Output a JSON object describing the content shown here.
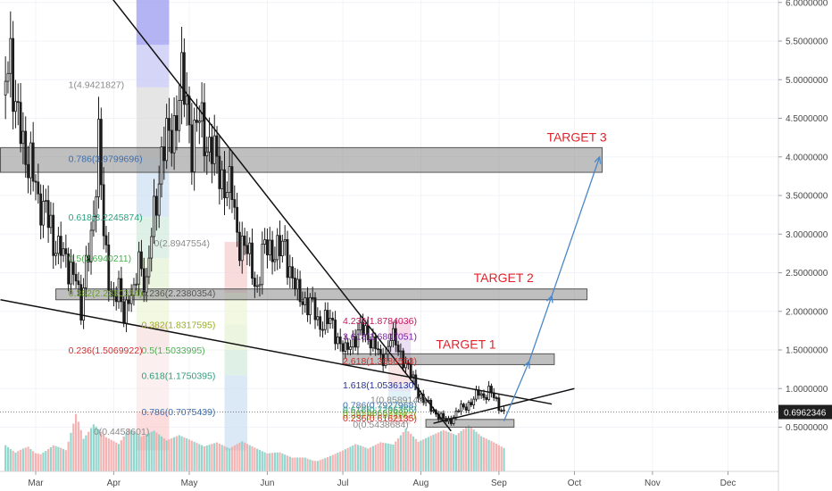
{
  "chart_data": {
    "type": "candlestick",
    "title": "",
    "ylim": [
      0.2,
      6.3
    ],
    "y_ticks": [
      "6.0000000",
      "5.5000000",
      "5.0000000",
      "4.5000000",
      "4.0000000",
      "3.5000000",
      "3.0000000",
      "2.5000000",
      "2.0000000",
      "1.5000000",
      "1.0000000",
      "0.5000000"
    ],
    "y_tick_values": [
      6.0,
      5.5,
      5.0,
      4.5,
      4.0,
      3.5,
      3.0,
      2.5,
      2.0,
      1.5,
      1.0,
      0.5
    ],
    "x_ticks": [
      "Mar",
      "Apr",
      "May",
      "Jun",
      "Jul",
      "Aug",
      "Sep",
      "Oct",
      "Nov",
      "Dec"
    ],
    "x_tick_days": [
      0,
      31,
      61,
      92,
      122,
      153,
      184,
      214,
      245,
      275
    ],
    "last_price": "0.6962346",
    "price_path": [
      [
        -13,
        4.8
      ],
      [
        -10,
        5.45
      ],
      [
        -8,
        4.6
      ],
      [
        -5,
        4.1
      ],
      [
        -2,
        4.0
      ],
      [
        1,
        3.3
      ],
      [
        4,
        3.5
      ],
      [
        7,
        2.7
      ],
      [
        10,
        3.0
      ],
      [
        13,
        2.4
      ],
      [
        16,
        2.6
      ],
      [
        18,
        1.95
      ],
      [
        21,
        2.8
      ],
      [
        23,
        3.3
      ],
      [
        25,
        4.15
      ],
      [
        27,
        3.0
      ],
      [
        29,
        2.5
      ],
      [
        31,
        2.1
      ],
      [
        33,
        2.25
      ],
      [
        35,
        2.0
      ],
      [
        37,
        2.2
      ],
      [
        39,
        2.15
      ],
      [
        41,
        2.75
      ],
      [
        44,
        2.3
      ],
      [
        47,
        3.3
      ],
      [
        50,
        4.0
      ],
      [
        53,
        4.25
      ],
      [
        55,
        4.45
      ],
      [
        58,
        4.9
      ],
      [
        60,
        4.7
      ],
      [
        62,
        4.2
      ],
      [
        65,
        4.45
      ],
      [
        67,
        4.3
      ],
      [
        70,
        4.1
      ],
      [
        72,
        3.85
      ],
      [
        75,
        3.7
      ],
      [
        78,
        3.5
      ],
      [
        80,
        3.0
      ],
      [
        82,
        2.9
      ],
      [
        84,
        2.75
      ],
      [
        86,
        2.55
      ],
      [
        88,
        2.3
      ],
      [
        90,
        2.7
      ],
      [
        92,
        2.85
      ],
      [
        95,
        2.8
      ],
      [
        97,
        2.75
      ],
      [
        99,
        2.85
      ],
      [
        101,
        2.55
      ],
      [
        104,
        2.2
      ],
      [
        107,
        2.15
      ],
      [
        110,
        2.05
      ],
      [
        112,
        1.85
      ],
      [
        115,
        1.9
      ],
      [
        118,
        1.8
      ],
      [
        121,
        1.6
      ],
      [
        123,
        1.45
      ],
      [
        126,
        1.65
      ],
      [
        129,
        1.75
      ],
      [
        132,
        1.7
      ],
      [
        135,
        1.55
      ],
      [
        137,
        1.35
      ],
      [
        139,
        1.45
      ],
      [
        141,
        1.7
      ],
      [
        143,
        1.55
      ],
      [
        146,
        1.4
      ],
      [
        148,
        1.25
      ],
      [
        150,
        1.1
      ],
      [
        152,
        0.95
      ],
      [
        154,
        0.85
      ],
      [
        157,
        0.75
      ],
      [
        160,
        0.65
      ],
      [
        163,
        0.58
      ],
      [
        165,
        0.6
      ],
      [
        168,
        0.72
      ],
      [
        171,
        0.78
      ],
      [
        174,
        0.85
      ],
      [
        176,
        0.95
      ],
      [
        178,
        0.9
      ],
      [
        180,
        0.97
      ],
      [
        182,
        0.88
      ],
      [
        184,
        0.78
      ],
      [
        186,
        0.7
      ]
    ],
    "volume_profile": [
      [
        -13,
        0.45
      ],
      [
        -8,
        0.35
      ],
      [
        -3,
        0.55
      ],
      [
        2,
        0.4
      ],
      [
        7,
        0.5
      ],
      [
        12,
        0.35
      ],
      [
        16,
        0.85
      ],
      [
        19,
        0.45
      ],
      [
        23,
        0.6
      ],
      [
        28,
        0.4
      ],
      [
        33,
        0.3
      ],
      [
        37,
        0.45
      ],
      [
        42,
        0.35
      ],
      [
        47,
        0.4
      ],
      [
        52,
        0.3
      ],
      [
        57,
        0.35
      ],
      [
        62,
        0.3
      ],
      [
        67,
        0.25
      ],
      [
        72,
        0.3
      ],
      [
        77,
        0.25
      ],
      [
        82,
        0.35
      ],
      [
        87,
        0.3
      ],
      [
        92,
        0.25
      ],
      [
        97,
        0.3
      ],
      [
        102,
        0.25
      ],
      [
        107,
        0.3
      ],
      [
        112,
        0.25
      ],
      [
        117,
        0.3
      ],
      [
        122,
        0.35
      ],
      [
        127,
        0.4
      ],
      [
        132,
        0.3
      ],
      [
        137,
        0.35
      ],
      [
        142,
        0.3
      ],
      [
        147,
        0.45
      ],
      [
        152,
        0.3
      ],
      [
        157,
        0.35
      ],
      [
        162,
        0.4
      ],
      [
        167,
        0.35
      ],
      [
        172,
        0.45
      ],
      [
        177,
        0.35
      ],
      [
        182,
        0.3
      ],
      [
        186,
        0.25
      ]
    ],
    "zones": [
      {
        "d1": -14,
        "d2": 225,
        "top": 4.12,
        "bottom": 3.8
      },
      {
        "d1": 8,
        "d2": 219,
        "top": 2.29,
        "bottom": 2.15
      },
      {
        "d1": 122,
        "d2": 206,
        "top": 1.45,
        "bottom": 1.31
      },
      {
        "d1": 155,
        "d2": 190,
        "top": 0.6,
        "bottom": 0.5
      }
    ],
    "trendlines": [
      {
        "d1": 28,
        "v1": 6.15,
        "d2": 165,
        "v2": 0.45,
        "color": "#111111"
      },
      {
        "d1": -14,
        "v1": 2.15,
        "d2": 205,
        "v2": 0.8,
        "color": "#111111"
      },
      {
        "d1": 158,
        "v1": 0.55,
        "d2": 214,
        "v2": 1.0,
        "color": "#111111"
      },
      {
        "d1": 186,
        "v1": 0.58,
        "d2": 196,
        "v2": 1.35,
        "color": "#4a86c8"
      },
      {
        "d1": 196,
        "v1": 1.35,
        "d2": 205,
        "v2": 2.2,
        "color": "#4a86c8"
      },
      {
        "d1": 205,
        "v1": 2.2,
        "d2": 224,
        "v2": 4.0,
        "color": "#4a86c8"
      }
    ],
    "fib_bands": [
      {
        "d1": 40,
        "d2": 53,
        "top": 6.3,
        "bottom": 5.45,
        "color": "#9b9bf0"
      },
      {
        "d1": 40,
        "d2": 53,
        "top": 5.45,
        "bottom": 4.9,
        "color": "#c7c7f5"
      },
      {
        "d1": 40,
        "d2": 53,
        "top": 4.9,
        "bottom": 3.98,
        "color": "#dcdcdc"
      },
      {
        "d1": 40,
        "d2": 53,
        "top": 3.98,
        "bottom": 3.22,
        "color": "#cfe0f3"
      },
      {
        "d1": 40,
        "d2": 53,
        "top": 3.22,
        "bottom": 2.69,
        "color": "#d4ecdd"
      },
      {
        "d1": 40,
        "d2": 53,
        "top": 2.69,
        "bottom": 2.24,
        "color": "#e6f1d6"
      },
      {
        "d1": 40,
        "d2": 53,
        "top": 2.24,
        "bottom": 1.83,
        "color": "#eef6d8"
      },
      {
        "d1": 40,
        "d2": 53,
        "top": 1.83,
        "bottom": 1.5,
        "color": "#f7e0e0"
      },
      {
        "d1": 40,
        "d2": 53,
        "top": 1.5,
        "bottom": 0.7,
        "color": "#f9e9e9"
      },
      {
        "d1": 40,
        "d2": 53,
        "top": 0.7,
        "bottom": 0.2,
        "color": "#fbd0d0"
      },
      {
        "d1": 75,
        "d2": 84,
        "top": 2.9,
        "bottom": 2.24,
        "color": "#f6d0d0"
      },
      {
        "d1": 75,
        "d2": 84,
        "top": 2.24,
        "bottom": 1.83,
        "color": "#eef6d8"
      },
      {
        "d1": 75,
        "d2": 84,
        "top": 1.83,
        "bottom": 1.5,
        "color": "#e6f1d6"
      },
      {
        "d1": 75,
        "d2": 84,
        "top": 1.5,
        "bottom": 1.17,
        "color": "#d4ecdd"
      },
      {
        "d1": 75,
        "d2": 84,
        "top": 1.17,
        "bottom": 0.2,
        "color": "#cfe0f3"
      },
      {
        "d1": 140,
        "d2": 149,
        "top": 1.88,
        "bottom": 1.68,
        "color": "#f4c9df"
      },
      {
        "d1": 140,
        "d2": 149,
        "top": 1.68,
        "bottom": 1.36,
        "color": "#e4d4f0"
      },
      {
        "d1": 140,
        "d2": 149,
        "top": 1.36,
        "bottom": 1.05,
        "color": "#f6dcdc"
      },
      {
        "d1": 140,
        "d2": 149,
        "top": 1.05,
        "bottom": 0.96,
        "color": "#dcdcf6"
      },
      {
        "d1": 140,
        "d2": 149,
        "top": 0.96,
        "bottom": 0.85,
        "color": "#d7ecf5"
      },
      {
        "d1": 140,
        "d2": 149,
        "top": 0.85,
        "bottom": 0.75,
        "color": "#dff2e0"
      },
      {
        "d1": 140,
        "d2": 149,
        "top": 0.75,
        "bottom": 0.65,
        "color": "#f2f6d8"
      },
      {
        "d1": 140,
        "d2": 149,
        "top": 0.65,
        "bottom": 0.54,
        "color": "#f6dede"
      }
    ],
    "fib_labels": [
      {
        "text": "1(4.9421827)",
        "d": 13,
        "v": 4.94,
        "color": "#8a8a8a"
      },
      {
        "text": "0.786(3.9799696)",
        "d": 13,
        "v": 3.98,
        "color": "#3d6fb0"
      },
      {
        "text": "0.618(3.2245874)",
        "d": 13,
        "v": 3.22,
        "color": "#2b9f7c"
      },
      {
        "text": "0.5(2.6940211)",
        "d": 13,
        "v": 2.69,
        "color": "#4caf50"
      },
      {
        "text": "0.382(2.2380354)",
        "d": 13,
        "v": 2.24,
        "color": "#6a9d2a"
      },
      {
        "text": "0.236(1.5069922)",
        "d": 13,
        "v": 1.5,
        "color": "#d32f2f"
      },
      {
        "text": "0(0.4458601)",
        "d": 23,
        "v": 0.45,
        "color": "#8a8a8a"
      },
      {
        "text": "0(2.8947554)",
        "d": 47,
        "v": 2.89,
        "color": "#8a8a8a"
      },
      {
        "text": "0.236(2.2380354)",
        "d": 42,
        "v": 2.24,
        "color": "#555555"
      },
      {
        "text": "0.382(1.8317595)",
        "d": 42,
        "v": 1.83,
        "color": "#9aaf1c"
      },
      {
        "text": "0.5(1.5033995)",
        "d": 42,
        "v": 1.5,
        "color": "#4caf50"
      },
      {
        "text": "0.618(1.1750395)",
        "d": 42,
        "v": 1.17,
        "color": "#2b9f7c"
      },
      {
        "text": "0.786(0.7075439)",
        "d": 42,
        "v": 0.7,
        "color": "#3d6fb0"
      },
      {
        "text": "4.236(1.8784036)",
        "d": 122,
        "v": 1.88,
        "color": "#c2185b"
      },
      {
        "text": "3.618(1.6807051)",
        "d": 122,
        "v": 1.68,
        "color": "#7b1fa2"
      },
      {
        "text": "2.618(1.3686553)",
        "d": 122,
        "v": 1.36,
        "color": "#d32f2f"
      },
      {
        "text": "1.618(1.0536130)",
        "d": 122,
        "v": 1.05,
        "color": "#283593"
      },
      {
        "text": "1(0.8589145)",
        "d": 133,
        "v": 0.86,
        "color": "#8a8a8a"
      },
      {
        "text": "0.786(0.7927968)",
        "d": 122,
        "v": 0.79,
        "color": "#3d6fb0"
      },
      {
        "text": "0.618(0.7296356)",
        "d": 122,
        "v": 0.73,
        "color": "#2b9f7c"
      },
      {
        "text": "0.5(0.6868293)",
        "d": 122,
        "v": 0.69,
        "color": "#4caf50"
      },
      {
        "text": "0.382(0.6591183)",
        "d": 122,
        "v": 0.66,
        "color": "#9aaf1c"
      },
      {
        "text": "0.236(0.6162135)",
        "d": 122,
        "v": 0.62,
        "color": "#d32f2f"
      },
      {
        "text": "0(0.5438684)",
        "d": 126,
        "v": 0.54,
        "color": "#8a8a8a"
      }
    ],
    "targets": [
      {
        "label": "TARGET 1",
        "d": 159,
        "v": 1.52
      },
      {
        "label": "TARGET 2",
        "d": 174,
        "v": 2.38
      },
      {
        "label": "TARGET 3",
        "d": 203,
        "v": 4.2
      }
    ]
  }
}
